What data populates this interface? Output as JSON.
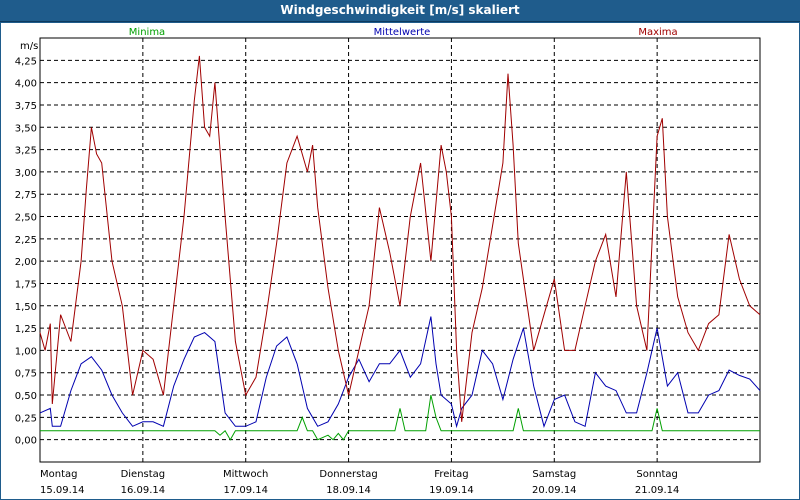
{
  "window": {
    "title": "Windgeschwindigkeit [m/s] skaliert"
  },
  "chart_data": {
    "type": "line",
    "title": "Windgeschwindigkeit [m/s] skaliert",
    "ylabel": "m/s",
    "xlabel": "",
    "ylim": [
      -0.25,
      4.5
    ],
    "yticks": [
      "4,25",
      "4,00",
      "3,75",
      "3,50",
      "3,25",
      "3,00",
      "2,75",
      "2,50",
      "2,25",
      "2,00",
      "1,75",
      "1,50",
      "1,25",
      "1,00",
      "0,75",
      "0,50",
      "0,25",
      "0,00"
    ],
    "ytick_values": [
      4.25,
      4.0,
      3.75,
      3.5,
      3.25,
      3.0,
      2.75,
      2.5,
      2.25,
      2.0,
      1.75,
      1.5,
      1.25,
      1.0,
      0.75,
      0.5,
      0.25,
      0.0
    ],
    "xlim": [
      0,
      7
    ],
    "x_ticks": [
      {
        "day": "Montag",
        "date": "15.09.14",
        "x": 0
      },
      {
        "day": "Dienstag",
        "date": "16.09.14",
        "x": 1
      },
      {
        "day": "Mittwoch",
        "date": "17.09.14",
        "x": 2
      },
      {
        "day": "Donnerstag",
        "date": "18.09.14",
        "x": 3
      },
      {
        "day": "Freitag",
        "date": "19.09.14",
        "x": 4
      },
      {
        "day": "Samstag",
        "date": "20.09.14",
        "x": 5
      },
      {
        "day": "Sonntag",
        "date": "21.09.14",
        "x": 6
      }
    ],
    "grid": true,
    "legend_placement": "top",
    "series": [
      {
        "name": "Minima",
        "color": "#00a000",
        "x": [
          0,
          1.7,
          1.75,
          1.8,
          1.85,
          1.9,
          2.35,
          2.5,
          2.55,
          2.6,
          2.65,
          2.7,
          2.8,
          2.85,
          2.9,
          2.95,
          3.0,
          3.05,
          3.1,
          3.3,
          3.45,
          3.5,
          3.55,
          3.6,
          3.75,
          3.8,
          3.85,
          3.9,
          3.95,
          4.2,
          4.6,
          4.65,
          4.7,
          4.75,
          4.8,
          5.95,
          6.0,
          6.05,
          7
        ],
        "y": [
          0.1,
          0.1,
          0.05,
          0.1,
          0.0,
          0.1,
          0.1,
          0.1,
          0.25,
          0.1,
          0.1,
          0.0,
          0.05,
          0.0,
          0.07,
          0.0,
          0.1,
          0.1,
          0.1,
          0.1,
          0.1,
          0.35,
          0.1,
          0.1,
          0.1,
          0.5,
          0.25,
          0.1,
          0.1,
          0.1,
          0.1,
          0.35,
          0.1,
          0.1,
          0.1,
          0.1,
          0.35,
          0.1,
          0.1
        ]
      },
      {
        "name": "Mittelwerte",
        "color": "#0000b0",
        "x": [
          0,
          0.1,
          0.12,
          0.2,
          0.3,
          0.4,
          0.5,
          0.6,
          0.7,
          0.8,
          0.9,
          1.0,
          1.1,
          1.2,
          1.3,
          1.4,
          1.5,
          1.6,
          1.7,
          1.8,
          1.9,
          2.0,
          2.1,
          2.2,
          2.3,
          2.4,
          2.5,
          2.6,
          2.7,
          2.8,
          2.9,
          3.0,
          3.1,
          3.2,
          3.3,
          3.4,
          3.5,
          3.6,
          3.7,
          3.8,
          3.85,
          3.9,
          4.0,
          4.05,
          4.1,
          4.2,
          4.3,
          4.4,
          4.5,
          4.6,
          4.7,
          4.8,
          4.9,
          5.0,
          5.1,
          5.2,
          5.3,
          5.4,
          5.5,
          5.6,
          5.7,
          5.8,
          5.9,
          6.0,
          6.1,
          6.2,
          6.3,
          6.4,
          6.5,
          6.6,
          6.7,
          6.8,
          6.9,
          7.0
        ],
        "y": [
          0.3,
          0.35,
          0.15,
          0.15,
          0.55,
          0.85,
          0.93,
          0.78,
          0.5,
          0.3,
          0.15,
          0.2,
          0.2,
          0.15,
          0.6,
          0.9,
          1.15,
          1.2,
          1.1,
          0.3,
          0.15,
          0.15,
          0.2,
          0.7,
          1.05,
          1.15,
          0.85,
          0.35,
          0.15,
          0.2,
          0.4,
          0.7,
          0.9,
          0.65,
          0.85,
          0.85,
          1.0,
          0.7,
          0.85,
          1.38,
          0.85,
          0.5,
          0.4,
          0.15,
          0.35,
          0.5,
          1.0,
          0.85,
          0.45,
          0.9,
          1.25,
          0.6,
          0.15,
          0.45,
          0.5,
          0.2,
          0.15,
          0.75,
          0.6,
          0.55,
          0.3,
          0.3,
          0.75,
          1.25,
          0.6,
          0.75,
          0.3,
          0.3,
          0.5,
          0.55,
          0.78,
          0.72,
          0.68,
          0.55
        ]
      },
      {
        "name": "Maxima",
        "color": "#a00000",
        "x": [
          0,
          0.05,
          0.1,
          0.12,
          0.2,
          0.3,
          0.4,
          0.45,
          0.5,
          0.55,
          0.6,
          0.7,
          0.8,
          0.9,
          1.0,
          1.1,
          1.2,
          1.3,
          1.4,
          1.5,
          1.55,
          1.6,
          1.65,
          1.7,
          1.8,
          1.9,
          2.0,
          2.1,
          2.2,
          2.3,
          2.4,
          2.5,
          2.6,
          2.65,
          2.7,
          2.8,
          2.9,
          3.0,
          3.1,
          3.2,
          3.3,
          3.4,
          3.5,
          3.6,
          3.7,
          3.8,
          3.9,
          3.95,
          4.0,
          4.05,
          4.1,
          4.2,
          4.3,
          4.4,
          4.5,
          4.55,
          4.6,
          4.65,
          4.7,
          4.8,
          4.9,
          5.0,
          5.1,
          5.2,
          5.3,
          5.4,
          5.5,
          5.6,
          5.7,
          5.8,
          5.9,
          6.0,
          6.05,
          6.1,
          6.2,
          6.3,
          6.4,
          6.5,
          6.6,
          6.7,
          6.8,
          6.9,
          7.0
        ],
        "y": [
          1.2,
          1.0,
          1.3,
          0.4,
          1.4,
          1.1,
          2.0,
          2.8,
          3.5,
          3.2,
          3.1,
          2.0,
          1.5,
          0.5,
          1.0,
          0.9,
          0.5,
          1.5,
          2.5,
          3.8,
          4.3,
          3.5,
          3.4,
          4.0,
          2.5,
          1.1,
          0.5,
          0.7,
          1.4,
          2.2,
          3.1,
          3.4,
          3.0,
          3.3,
          2.6,
          1.7,
          1.0,
          0.5,
          1.0,
          1.5,
          2.6,
          2.1,
          1.5,
          2.5,
          3.1,
          2.0,
          3.3,
          3.0,
          2.5,
          1.0,
          0.2,
          1.2,
          1.7,
          2.4,
          3.1,
          4.1,
          3.3,
          2.2,
          1.8,
          1.0,
          1.4,
          1.8,
          1.0,
          1.0,
          1.5,
          2.0,
          2.3,
          1.6,
          3.0,
          1.5,
          1.0,
          3.4,
          3.6,
          2.5,
          1.6,
          1.2,
          1.0,
          1.3,
          1.4,
          2.3,
          1.8,
          1.5,
          1.4
        ]
      }
    ]
  }
}
